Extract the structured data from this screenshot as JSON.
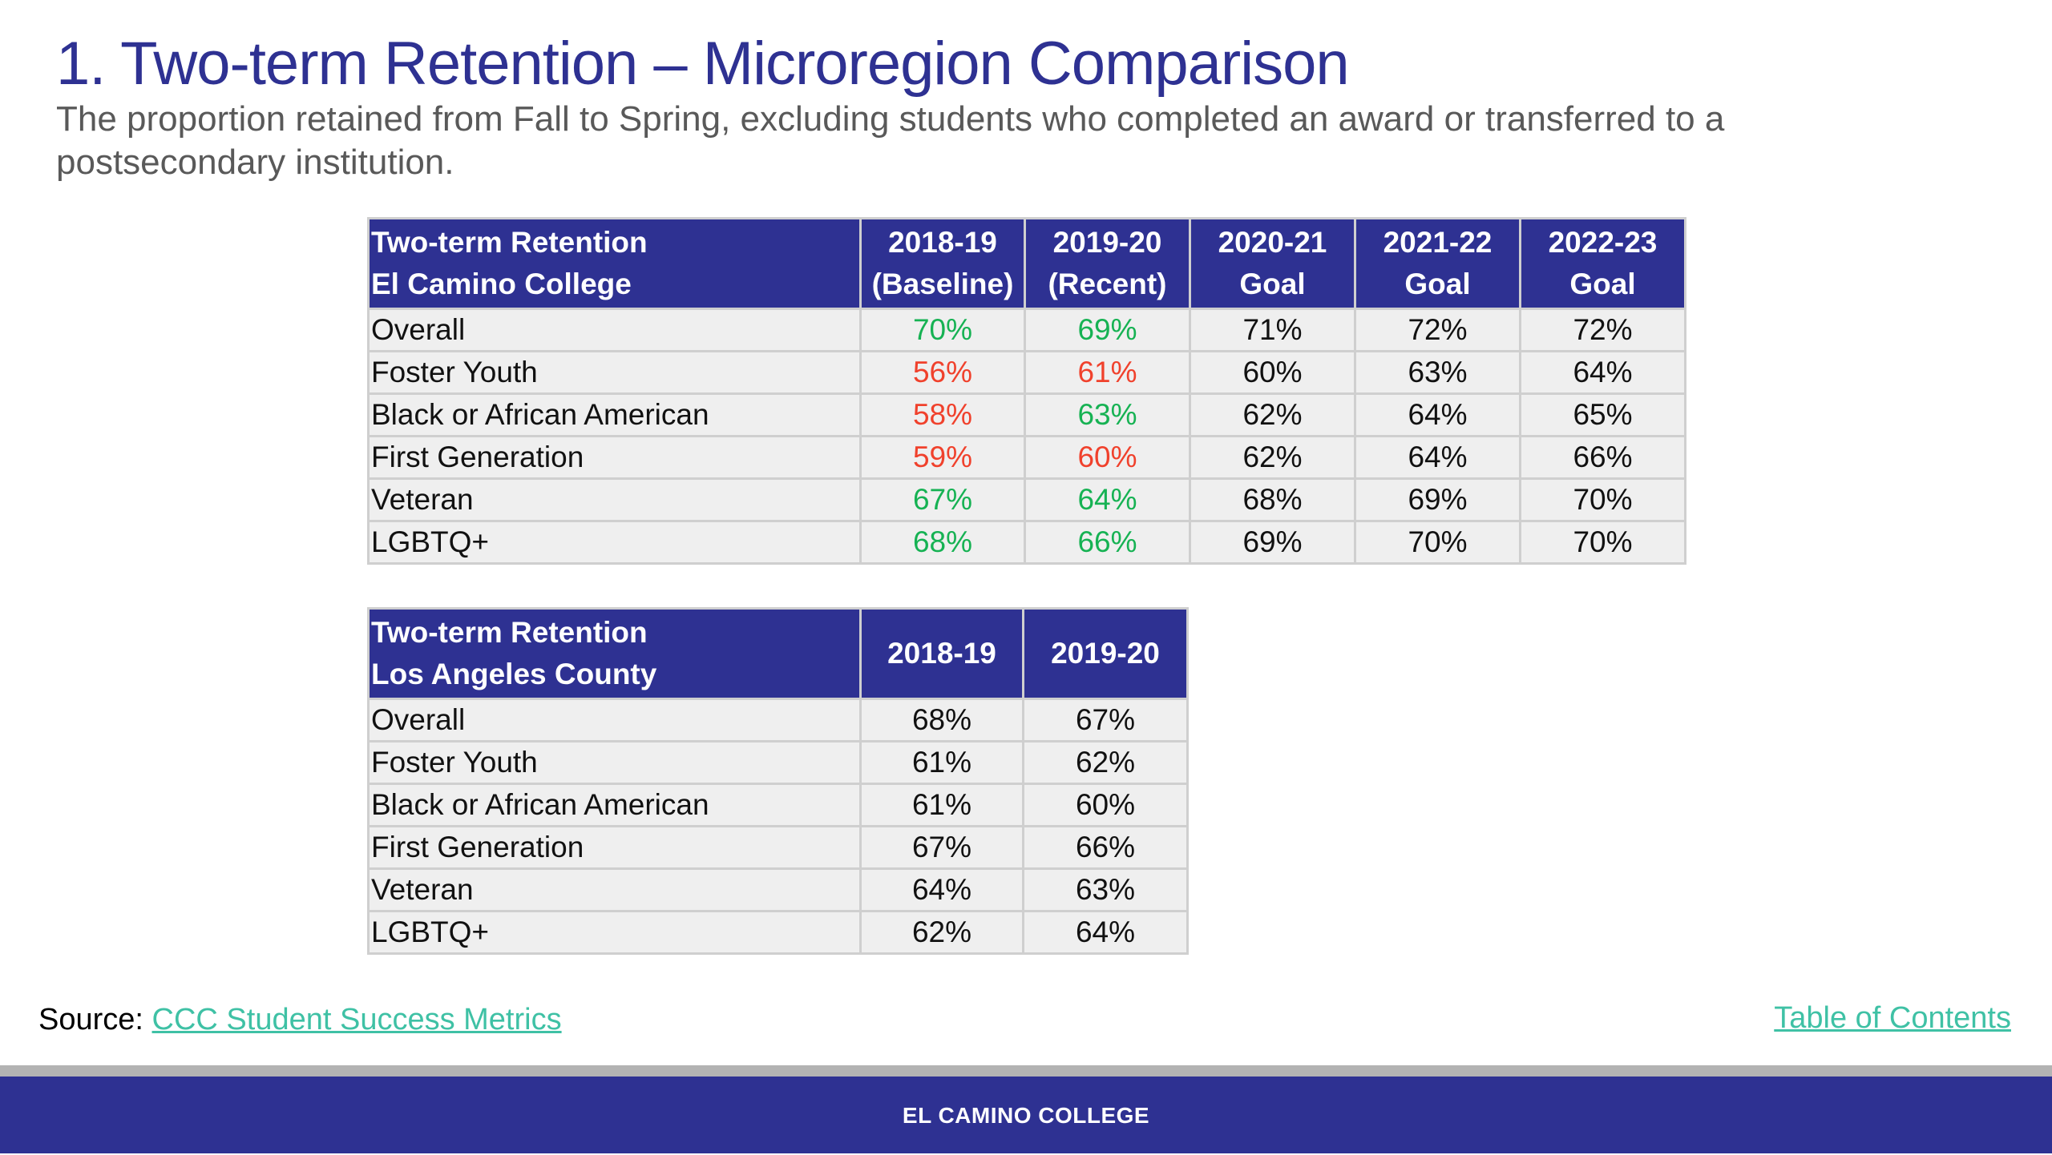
{
  "title": "1. Two-term Retention – Microregion Comparison",
  "subtitle": "The proportion retained from Fall to Spring, excluding students who completed an award or transferred to a postsecondary institution.",
  "colors": {
    "brand": "#2e3192",
    "above": "#16b253",
    "below": "#f0412c",
    "link": "#3fc1a5"
  },
  "ecc_table": {
    "header": {
      "label_line1": "Two-term Retention",
      "label_line2": "El Camino College",
      "cols": [
        {
          "line1": "2018-19",
          "line2": "(Baseline)"
        },
        {
          "line1": "2019-20",
          "line2": "(Recent)"
        },
        {
          "line1": "2020-21",
          "line2": "Goal"
        },
        {
          "line1": "2021-22",
          "line2": "Goal"
        },
        {
          "line1": "2022-23",
          "line2": "Goal"
        }
      ]
    },
    "rows": [
      {
        "label": "Overall",
        "values": [
          "70%",
          "69%",
          "71%",
          "72%",
          "72%"
        ],
        "status": [
          "above",
          "above"
        ]
      },
      {
        "label": "Foster Youth",
        "values": [
          "56%",
          "61%",
          "60%",
          "63%",
          "64%"
        ],
        "status": [
          "below",
          "below"
        ]
      },
      {
        "label": "Black or African American",
        "values": [
          "58%",
          "63%",
          "62%",
          "64%",
          "65%"
        ],
        "status": [
          "below",
          "above"
        ]
      },
      {
        "label": "First Generation",
        "values": [
          "59%",
          "60%",
          "62%",
          "64%",
          "66%"
        ],
        "status": [
          "below",
          "below"
        ]
      },
      {
        "label": "Veteran",
        "values": [
          "67%",
          "64%",
          "68%",
          "69%",
          "70%"
        ],
        "status": [
          "above",
          "above"
        ]
      },
      {
        "label": "LGBTQ+",
        "values": [
          "68%",
          "66%",
          "69%",
          "70%",
          "70%"
        ],
        "status": [
          "above",
          "above"
        ]
      }
    ]
  },
  "la_table": {
    "header": {
      "label_line1": "Two-term Retention",
      "label_line2": "Los Angeles County",
      "cols": [
        "2018-19",
        "2019-20"
      ]
    },
    "rows": [
      {
        "label": "Overall",
        "values": [
          "68%",
          "67%"
        ]
      },
      {
        "label": "Foster Youth",
        "values": [
          "61%",
          "62%"
        ]
      },
      {
        "label": "Black or African American",
        "values": [
          "61%",
          "60%"
        ]
      },
      {
        "label": "First Generation",
        "values": [
          "67%",
          "66%"
        ]
      },
      {
        "label": "Veteran",
        "values": [
          "64%",
          "63%"
        ]
      },
      {
        "label": "LGBTQ+",
        "values": [
          "62%",
          "64%"
        ]
      }
    ]
  },
  "source": {
    "label": "Source:",
    "link_text": "CCC Student Success Metrics"
  },
  "toc_link": "Table of Contents",
  "footer": "EL CAMINO COLLEGE"
}
